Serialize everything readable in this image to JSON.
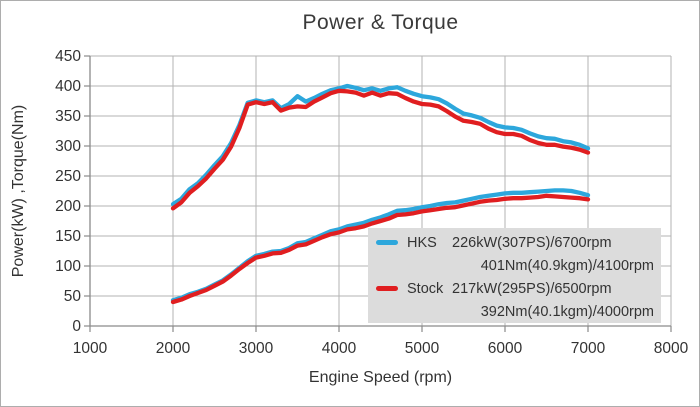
{
  "chart_data": {
    "type": "line",
    "title": "Power & Torque",
    "xlabel": "Engine Speed (rpm)",
    "ylabel": "Power(kW) ,Torque(Nm)",
    "xlim": [
      1000,
      8000
    ],
    "ylim": [
      0,
      450
    ],
    "x_ticks": [
      1000,
      2000,
      3000,
      4000,
      5000,
      6000,
      7000,
      8000
    ],
    "y_ticks": [
      0,
      50,
      100,
      150,
      200,
      250,
      300,
      350,
      400,
      450
    ],
    "grid": true,
    "legend_position": "inside lower right",
    "x_rpm": [
      2000,
      2100,
      2200,
      2300,
      2400,
      2500,
      2600,
      2700,
      2800,
      2900,
      3000,
      3100,
      3200,
      3300,
      3400,
      3500,
      3600,
      3700,
      3800,
      3900,
      4000,
      4100,
      4200,
      4300,
      4400,
      4500,
      4600,
      4700,
      4800,
      4900,
      5000,
      5100,
      5200,
      5300,
      5400,
      5500,
      5600,
      5700,
      5800,
      5900,
      6000,
      6100,
      6200,
      6300,
      6400,
      6500,
      6600,
      6700,
      6800,
      6900,
      7000
    ],
    "series": [
      {
        "name": "HKS torque (Nm)",
        "color": "#2da7dc",
        "values": [
          203,
          212,
          228,
          238,
          252,
          268,
          283,
          305,
          335,
          372,
          376,
          373,
          376,
          363,
          370,
          383,
          374,
          380,
          387,
          393,
          396,
          400,
          397,
          393,
          396,
          392,
          396,
          398,
          392,
          387,
          383,
          381,
          378,
          371,
          362,
          354,
          351,
          347,
          340,
          334,
          331,
          330,
          327,
          321,
          316,
          313,
          312,
          308,
          306,
          302,
          296
        ]
      },
      {
        "name": "HKS power (kW)",
        "color": "#2da7dc",
        "values": [
          43,
          47,
          53,
          57,
          62,
          69,
          76,
          86,
          97,
          108,
          117,
          120,
          124,
          125,
          130,
          138,
          140,
          146,
          152,
          158,
          161,
          166,
          169,
          172,
          177,
          181,
          186,
          192,
          193,
          195,
          198,
          200,
          203,
          205,
          206,
          209,
          212,
          215,
          217,
          219,
          221,
          222,
          222,
          223,
          224,
          225,
          226,
          226,
          225,
          222,
          218
        ]
      },
      {
        "name": "Stock torque (Nm)",
        "color": "#e01e20",
        "values": [
          196,
          206,
          222,
          233,
          246,
          262,
          277,
          299,
          330,
          369,
          373,
          370,
          373,
          359,
          364,
          366,
          365,
          374,
          381,
          388,
          392,
          391,
          389,
          384,
          389,
          384,
          388,
          387,
          380,
          374,
          370,
          369,
          366,
          358,
          349,
          342,
          340,
          337,
          329,
          323,
          320,
          320,
          317,
          310,
          305,
          302,
          302,
          299,
          297,
          294,
          289
        ]
      },
      {
        "name": "Stock power (kW)",
        "color": "#e01e20",
        "values": [
          40,
          44,
          50,
          55,
          60,
          67,
          74,
          84,
          95,
          105,
          114,
          117,
          121,
          122,
          127,
          134,
          136,
          142,
          148,
          153,
          156,
          161,
          163,
          166,
          171,
          175,
          179,
          185,
          186,
          188,
          191,
          193,
          195,
          197,
          198,
          201,
          204,
          207,
          209,
          210,
          212,
          213,
          213,
          214,
          215,
          217,
          216,
          215,
          214,
          213,
          211
        ]
      }
    ],
    "legend": {
      "entries": [
        {
          "name": "HKS",
          "color": "#2da7dc",
          "power_label": "226kW(307PS)/6700rpm",
          "torque_label": "401Nm(40.9kgm)/4100rpm"
        },
        {
          "name": "Stock",
          "color": "#e01e20",
          "power_label": "217kW(295PS)/6500rpm",
          "torque_label": "392Nm(40.1kgm)/4000rpm"
        }
      ]
    },
    "colors": {
      "hks": "#2da7dc",
      "stock": "#e01e20",
      "grid": "#b3b3b3",
      "axis": "#8a8a8a",
      "legend_bg": "#dcdcdc",
      "text": "#333333"
    }
  }
}
